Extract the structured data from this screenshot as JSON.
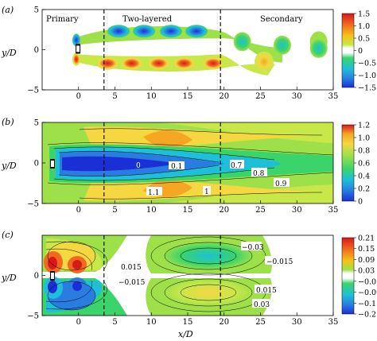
{
  "chart_data": [
    {
      "type": "heatmap",
      "panel_label": "(a)",
      "xlabel": "",
      "ylabel": "y/D",
      "xlim": [
        -5,
        35
      ],
      "ylim": [
        -5,
        5
      ],
      "x_ticks": [
        "0",
        "5",
        "10",
        "15",
        "20",
        "25",
        "30",
        "35"
      ],
      "y_ticks": [
        "5",
        "0",
        "−5"
      ],
      "region_labels": [
        "Primary",
        "Two-layered",
        "Secondary"
      ],
      "region_boundaries_x": [
        3.5,
        19.5
      ],
      "colorbar": {
        "ticks": [
          "1.5",
          "1.0",
          "0.5",
          "0",
          "−0.5",
          "−1.0",
          "−1.5"
        ],
        "values": [
          1.5,
          1.0,
          0.5,
          0,
          -0.5,
          -1.0,
          -1.5
        ],
        "colors": [
          "#d7191c",
          "#f06a1e",
          "#f5c317",
          "#c8e84a",
          "#ffffff",
          "#3ad46b",
          "#1ebfd9",
          "#2a7de0",
          "#1a2fd6"
        ]
      },
      "vortices_upper_x": [
        5.5,
        9,
        12.7,
        16.2,
        22.5,
        28,
        33
      ],
      "vortices_lower_x": [
        4,
        7.3,
        11,
        14.5,
        18.5,
        25.5
      ]
    },
    {
      "type": "heatmap",
      "panel_label": "(b)",
      "xlabel": "",
      "ylabel": "y/D",
      "xlim": [
        -5,
        35
      ],
      "ylim": [
        -5,
        5
      ],
      "x_ticks": [
        "0",
        "5",
        "10",
        "15",
        "20",
        "25",
        "30",
        "35"
      ],
      "y_ticks": [
        "5",
        "0",
        "−5"
      ],
      "region_boundaries_x": [
        3.5,
        19.5
      ],
      "colorbar": {
        "ticks": [
          "1.2",
          "1.0",
          "0.8",
          "0.6",
          "0.4",
          "0.2",
          "0"
        ],
        "values": [
          1.2,
          1.0,
          0.8,
          0.6,
          0.4,
          0.2,
          0
        ],
        "colors": [
          "#d7191c",
          "#f5a623",
          "#f5d742",
          "#9ee04a",
          "#3ad46b",
          "#1ebfd9",
          "#2a7de0",
          "#1a2fd6"
        ]
      },
      "contour_labels": [
        "0",
        "0.1",
        "0.7",
        "0.8",
        "0.9",
        "1.1",
        "1"
      ]
    },
    {
      "type": "heatmap",
      "panel_label": "(c)",
      "xlabel": "x/D",
      "ylabel": "y/D",
      "xlim": [
        -5,
        35
      ],
      "ylim": [
        -5,
        5
      ],
      "x_ticks": [
        "0",
        "5",
        "10",
        "15",
        "20",
        "25",
        "30",
        "35"
      ],
      "y_ticks": [
        "0",
        "−5"
      ],
      "region_boundaries_x": [
        3.5,
        19.5
      ],
      "colorbar": {
        "ticks": [
          "0.21",
          "0.15",
          "0.09",
          "0.03",
          "−0.03",
          "−0.09",
          "−0.15",
          "−0.21"
        ],
        "values": [
          0.21,
          0.15,
          0.09,
          0.03,
          -0.03,
          -0.09,
          -0.15,
          -0.21
        ],
        "colors": [
          "#d7191c",
          "#f06a1e",
          "#f5c317",
          "#9ee04a",
          "#ffffff",
          "#3ad46b",
          "#1ebfd9",
          "#2a7de0",
          "#1a2fd6"
        ]
      },
      "contour_labels": [
        "0.015",
        "−0.015",
        "−0.03",
        "−0.015",
        "0.015",
        "0.03"
      ]
    }
  ]
}
